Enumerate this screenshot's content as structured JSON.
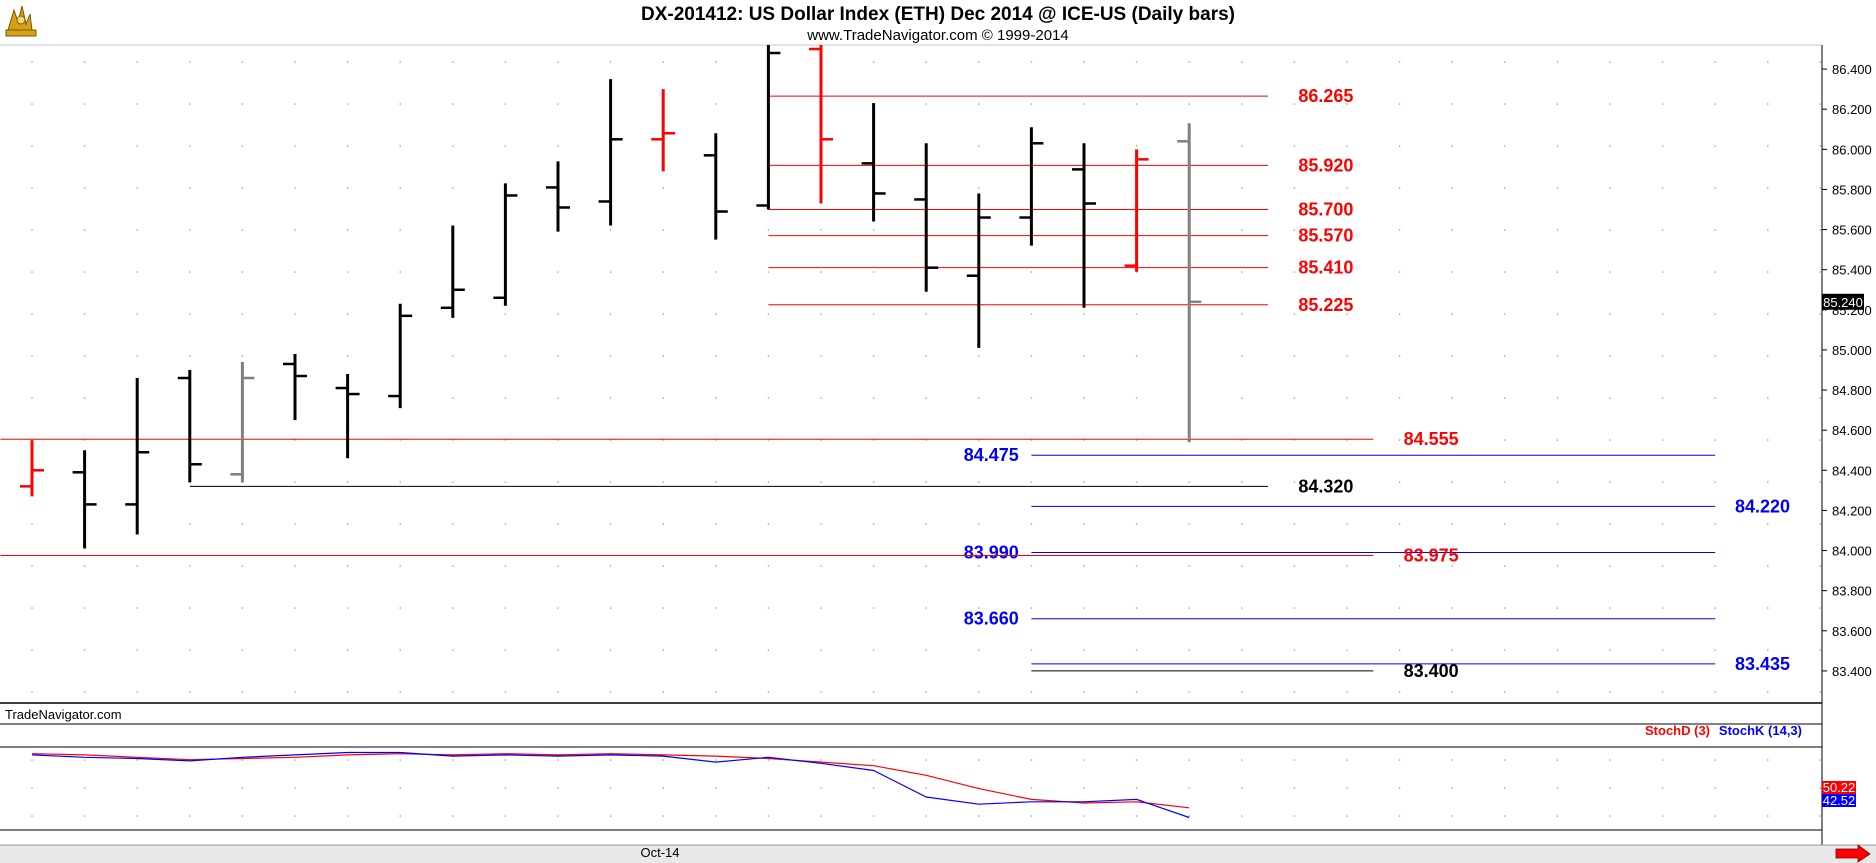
{
  "chart_data": {
    "type": "bar",
    "title": "DX-201412:  US Dollar Index (ETH) Dec 2014 @ ICE-US  (Daily bars)",
    "subtitle": "www.TradeNavigator.com © 1999-2014",
    "watermark": "TradeNavigator.com",
    "x_label": "Oct-14",
    "ylim": [
      83.24,
      86.52
    ],
    "y_ticks": [
      "86.400",
      "86.200",
      "86.000",
      "85.800",
      "85.600",
      "85.400",
      "85.200",
      "85.000",
      "84.800",
      "84.600",
      "84.400",
      "84.200",
      "84.000",
      "83.800",
      "83.600",
      "83.400"
    ],
    "last_price": "85.240",
    "colors": {
      "up": "#000000",
      "down": "#ff0000",
      "neutral": "#808080",
      "fib_red": "#ff0000",
      "fib_blue": "#0000ff",
      "stochD": "#ff0000",
      "stochK": "#0000ff"
    },
    "bars": [
      {
        "open": 84.32,
        "high": 84.55,
        "low": 84.27,
        "close": 84.4,
        "color": "red"
      },
      {
        "open": 84.39,
        "high": 84.5,
        "low": 84.01,
        "close": 84.23,
        "color": "black"
      },
      {
        "open": 84.23,
        "high": 84.86,
        "low": 84.08,
        "close": 84.49,
        "color": "black"
      },
      {
        "open": 84.86,
        "high": 84.9,
        "low": 84.34,
        "close": 84.43,
        "color": "black"
      },
      {
        "open": 84.38,
        "high": 84.94,
        "low": 84.34,
        "close": 84.86,
        "color": "gray"
      },
      {
        "open": 84.93,
        "high": 84.98,
        "low": 84.65,
        "close": 84.87,
        "color": "black"
      },
      {
        "open": 84.81,
        "high": 84.88,
        "low": 84.46,
        "close": 84.78,
        "color": "black"
      },
      {
        "open": 84.77,
        "high": 85.23,
        "low": 84.71,
        "close": 85.17,
        "color": "black"
      },
      {
        "open": 85.21,
        "high": 85.62,
        "low": 85.16,
        "close": 85.3,
        "color": "black"
      },
      {
        "open": 85.26,
        "high": 85.83,
        "low": 85.22,
        "close": 85.77,
        "color": "black"
      },
      {
        "open": 85.81,
        "high": 85.94,
        "low": 85.59,
        "close": 85.71,
        "color": "black"
      },
      {
        "open": 85.74,
        "high": 86.35,
        "low": 85.62,
        "close": 86.05,
        "color": "black"
      },
      {
        "open": 86.05,
        "high": 86.3,
        "low": 85.89,
        "close": 86.08,
        "color": "red"
      },
      {
        "open": 85.97,
        "high": 86.08,
        "low": 85.55,
        "close": 85.69,
        "color": "black"
      },
      {
        "open": 85.72,
        "high": 86.52,
        "low": 85.7,
        "close": 86.48,
        "color": "black"
      },
      {
        "open": 86.5,
        "high": 86.52,
        "low": 85.73,
        "close": 86.05,
        "color": "red"
      },
      {
        "open": 85.93,
        "high": 86.23,
        "low": 85.64,
        "close": 85.78,
        "color": "black"
      },
      {
        "open": 85.75,
        "high": 86.03,
        "low": 85.29,
        "close": 85.41,
        "color": "black"
      },
      {
        "open": 85.37,
        "high": 85.78,
        "low": 85.01,
        "close": 85.66,
        "color": "black"
      },
      {
        "open": 85.66,
        "high": 86.11,
        "low": 85.52,
        "close": 86.03,
        "color": "black"
      },
      {
        "open": 85.9,
        "high": 86.03,
        "low": 85.21,
        "close": 85.73,
        "color": "black"
      },
      {
        "open": 85.42,
        "high": 86.0,
        "low": 85.39,
        "close": 85.95,
        "color": "red"
      },
      {
        "open": 86.04,
        "high": 86.13,
        "low": 84.54,
        "close": 85.24,
        "color": "gray"
      }
    ],
    "levels": [
      {
        "value": 86.265,
        "label": "86.265",
        "color": "red",
        "x_from": 14,
        "x_to": 23.5,
        "label_pos": 24
      },
      {
        "value": 85.92,
        "label": "85.920",
        "color": "red",
        "x_from": 14,
        "x_to": 23.5,
        "label_pos": 24
      },
      {
        "value": 85.7,
        "label": "85.700",
        "color": "red",
        "x_from": 14,
        "x_to": 23.5,
        "label_pos": 24
      },
      {
        "value": 85.57,
        "label": "85.570",
        "color": "red",
        "x_from": 14,
        "x_to": 23.5,
        "label_pos": 24
      },
      {
        "value": 85.41,
        "label": "85.410",
        "color": "red",
        "x_from": 14,
        "x_to": 23.5,
        "label_pos": 24
      },
      {
        "value": 85.225,
        "label": "85.225",
        "color": "red",
        "x_from": 14,
        "x_to": 23.5,
        "label_pos": 24
      },
      {
        "value": 84.555,
        "label": "84.555",
        "color": "red",
        "x_from": -0.6,
        "x_to": 25.5,
        "label_pos": 26
      },
      {
        "value": 84.475,
        "label": "84.475",
        "color": "blue",
        "x_from": 19,
        "x_to": 32,
        "label_pos": 18
      },
      {
        "value": 84.32,
        "label": "84.320",
        "color": "black",
        "x_from": 3,
        "x_to": 23.5,
        "label_pos": 24
      },
      {
        "value": 84.22,
        "label": "84.220",
        "color": "blue",
        "x_from": 19,
        "x_to": 32,
        "label_pos": 32.3
      },
      {
        "value": 83.99,
        "label": "83.990",
        "color": "blue",
        "x_from": 19,
        "x_to": 32,
        "label_pos": 18
      },
      {
        "value": 83.975,
        "label": "83.975",
        "color": "red",
        "x_from": -0.6,
        "x_to": 25.5,
        "label_pos": 26
      },
      {
        "value": 83.66,
        "label": "83.660",
        "color": "blue",
        "x_from": 19,
        "x_to": 32,
        "label_pos": 18
      },
      {
        "value": 83.435,
        "label": "83.435",
        "color": "blue",
        "x_from": 19,
        "x_to": 32,
        "label_pos": 32.3
      },
      {
        "value": 83.4,
        "label": "83.400",
        "color": "black",
        "x_from": 19,
        "x_to": 25.5,
        "label_pos": 26
      }
    ],
    "stochastic": {
      "ylim": [
        0,
        100
      ],
      "legend_d": "StochD (3)",
      "legend_k": "StochK (14,3)",
      "last_d": "50.22",
      "last_k": "42.52",
      "d": [
        95,
        94,
        92,
        90,
        91,
        92,
        94,
        95,
        94,
        95,
        94,
        95,
        94,
        93,
        91,
        88,
        85,
        77,
        66,
        57,
        54,
        55,
        50
      ],
      "k": [
        94,
        92,
        91,
        89,
        92,
        94,
        96,
        96,
        93,
        94,
        93,
        94,
        93,
        88,
        92,
        87,
        81,
        59,
        53,
        55,
        55,
        57,
        42
      ]
    }
  }
}
